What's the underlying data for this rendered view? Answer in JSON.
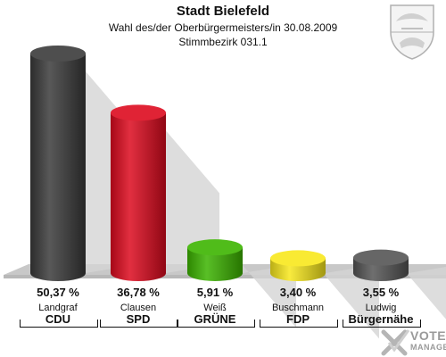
{
  "header": {
    "title": "Stadt Bielefeld",
    "subtitle1": "Wahl des/der Oberbürgermeisters/in 30.08.2009",
    "subtitle2": "Stimmbezirk 031.1"
  },
  "logo": {
    "line1": "VOTE",
    "line2": "MANAGER"
  },
  "colors": {
    "floor": "#c8c8c8",
    "shadow": "#d4d4d4"
  },
  "chart_data": {
    "type": "bar",
    "title": "Stadt Bielefeld",
    "subtitle": "Wahl des/der Oberbürgermeisters/in 30.08.2009 — Stimmbezirk 031.1",
    "xlabel": "",
    "ylabel": "",
    "categories": [
      "CDU",
      "SPD",
      "GRÜNE",
      "FDP",
      "Bürgernähe"
    ],
    "candidates": [
      "Landgraf",
      "Clausen",
      "Weiß",
      "Buschmann",
      "Ludwig"
    ],
    "values": [
      50.37,
      36.78,
      5.91,
      3.4,
      3.55
    ],
    "value_labels": [
      "50,37 %",
      "36,78 %",
      "5,91 %",
      "3,40 %",
      "3,55 %"
    ],
    "colors": [
      "#3a3a3a",
      "#dd0a1e",
      "#3cb400",
      "#f8e81c",
      "#555555"
    ],
    "ylim": [
      0,
      55
    ],
    "grid": false,
    "legend": "none"
  }
}
